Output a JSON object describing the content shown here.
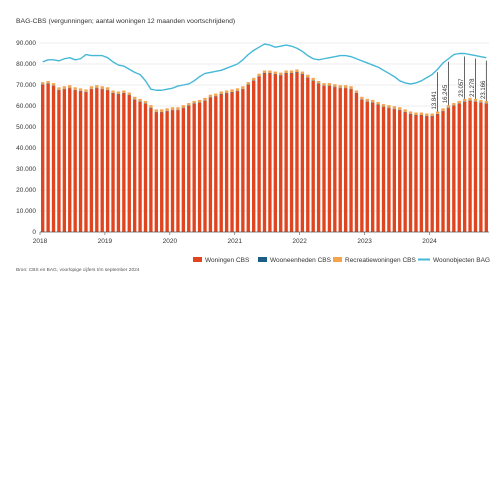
{
  "chart_data": {
    "type": "bar",
    "title": "BAG-CBS (vergunningen; aantal woningen 12 maanden voortschrijdend)",
    "source": "Bron: CBS en BAG, voorlopige cijfers t/m september 2024",
    "ylim": [
      0,
      90000
    ],
    "y_ticks": [
      "0",
      "10.000",
      "20.000",
      "30.000",
      "40.000",
      "50.000",
      "60.000",
      "70.000",
      "80.000",
      "90.000"
    ],
    "x_ticks": [
      "2018",
      "2019",
      "2020",
      "2021",
      "2022",
      "2023",
      "2024"
    ],
    "grid": true,
    "legend_position": "bottom",
    "colors": {
      "woningen": "#e0451f",
      "wooneenheden": "#1c5e86",
      "recreatie": "#f4a34f",
      "woonobjecten": "#45b8d8",
      "axis": "#555555",
      "grid": "#d9d9d9",
      "text": "#333333"
    },
    "series": [
      {
        "name": "Woningen CBS",
        "type": "bar",
        "values": [
          70000,
          70500,
          69500,
          67500,
          68000,
          68500,
          67500,
          67000,
          66500,
          68000,
          68500,
          68000,
          67500,
          66000,
          65500,
          66000,
          65000,
          63000,
          62000,
          61000,
          59000,
          57000,
          57000,
          57500,
          58000,
          58000,
          59000,
          60000,
          61000,
          61500,
          62500,
          64000,
          64500,
          65500,
          66000,
          66500,
          67000,
          68000,
          70000,
          72000,
          74000,
          75500,
          75500,
          75000,
          74500,
          75500,
          75500,
          76000,
          75000,
          73500,
          72000,
          70500,
          69500,
          69500,
          69000,
          68500,
          68500,
          68000,
          66000,
          63000,
          62000,
          61500,
          60500,
          59500,
          59000,
          58500,
          58000,
          57000,
          56000,
          55500,
          55500,
          55000,
          55000,
          56000,
          57500,
          59000,
          60000,
          61000,
          62000,
          62500,
          62000,
          61500,
          61000
        ]
      },
      {
        "name": "Wooneenheden CBS",
        "type": "bar",
        "values": [
          200,
          200,
          200,
          200,
          200,
          200,
          200,
          200,
          200,
          200,
          200,
          200,
          200,
          200,
          200,
          200,
          200,
          200,
          200,
          200,
          200,
          200,
          200,
          200,
          200,
          200,
          200,
          200,
          200,
          200,
          200,
          200,
          200,
          200,
          200,
          200,
          200,
          200,
          200,
          200,
          200,
          200,
          200,
          200,
          200,
          200,
          200,
          200,
          200,
          200,
          200,
          200,
          200,
          200,
          200,
          200,
          200,
          200,
          200,
          200,
          200,
          200,
          200,
          200,
          200,
          200,
          200,
          200,
          200,
          200,
          200,
          200,
          200,
          200,
          200,
          200,
          200,
          200,
          200,
          200,
          200,
          200,
          200
        ]
      },
      {
        "name": "Recreatiewoningen CBS",
        "type": "bar",
        "values": [
          1200,
          1200,
          1200,
          1200,
          1200,
          1200,
          1200,
          1200,
          1200,
          1200,
          1200,
          1200,
          1200,
          1200,
          1200,
          1200,
          1200,
          1200,
          1200,
          1200,
          1200,
          1200,
          1200,
          1200,
          1200,
          1200,
          1200,
          1200,
          1200,
          1200,
          1200,
          1200,
          1200,
          1200,
          1200,
          1200,
          1200,
          1200,
          1200,
          1200,
          1200,
          1200,
          1200,
          1200,
          1200,
          1200,
          1200,
          1200,
          1200,
          1200,
          1200,
          1200,
          1200,
          1200,
          1200,
          1200,
          1200,
          1200,
          1200,
          1200,
          1200,
          1200,
          1200,
          1200,
          1200,
          1200,
          1200,
          1200,
          1200,
          1200,
          1200,
          1200,
          1200,
          1200,
          1200,
          1200,
          1200,
          1200,
          1200,
          1200,
          1200,
          1200,
          1200
        ]
      },
      {
        "name": "Woonobjecten BAG",
        "type": "line",
        "values": [
          81000,
          82000,
          82000,
          81500,
          82500,
          83000,
          82000,
          82500,
          84500,
          84000,
          84000,
          84000,
          83000,
          81000,
          79500,
          79000,
          77500,
          76000,
          75000,
          72000,
          68000,
          67500,
          67500,
          68000,
          68500,
          69500,
          70000,
          70500,
          72000,
          74000,
          75500,
          76000,
          76500,
          77000,
          78000,
          79000,
          80000,
          82000,
          84500,
          86500,
          88000,
          89500,
          89000,
          88000,
          88500,
          89000,
          88500,
          87500,
          86000,
          84000,
          82500,
          82000,
          82500,
          83000,
          83500,
          84000,
          84000,
          83500,
          82500,
          81500,
          80500,
          79500,
          78500,
          77000,
          75500,
          74000,
          72000,
          71000,
          70500,
          71000,
          72000,
          73500,
          75000,
          77500,
          80500,
          82500,
          84500,
          85000,
          85000,
          84500,
          84000,
          83500,
          83000
        ]
      }
    ],
    "annotations": [
      {
        "text": "13.841",
        "bar_index": 73
      },
      {
        "text": "16.245",
        "bar_index": 75
      },
      {
        "text": "23.057",
        "bar_index": 78
      },
      {
        "text": "21.278",
        "bar_index": 80
      },
      {
        "text": "23.166",
        "bar_index": 82
      }
    ]
  }
}
